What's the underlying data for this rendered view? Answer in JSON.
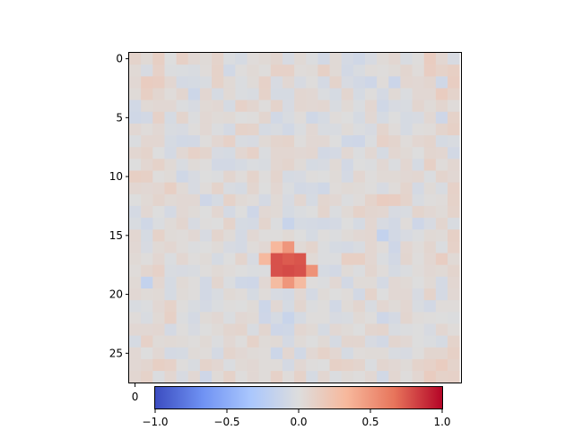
{
  "chart_data": {
    "type": "heatmap",
    "title": "",
    "xlabel": "",
    "ylabel": "",
    "rows": 28,
    "cols": 28,
    "colormap": "coolwarm",
    "vmin": -1.0,
    "vmax": 1.0,
    "colormap_stops": [
      "#3b4cc0",
      "#6f92f3",
      "#aac7fd",
      "#dddddd",
      "#f7b89c",
      "#e7745b",
      "#b40426"
    ],
    "y_ticks": [
      0,
      5,
      10,
      15,
      20,
      25
    ],
    "y_tick_labels": [
      "0",
      "5",
      "10",
      "15",
      "20",
      "25"
    ],
    "x_tick_labels": [
      "0"
    ],
    "colorbar": {
      "orientation": "horizontal",
      "ticks": [
        -1.0,
        -0.5,
        0.0,
        0.5,
        1.0
      ],
      "tick_labels": [
        "−1.0",
        "−0.5",
        "0.0",
        "0.5",
        "1.0"
      ]
    },
    "background_noise_range": [
      -0.2,
      0.2
    ],
    "values": [
      [
        0.09,
        0.04,
        0.13,
        0.0,
        0.12,
        0.05,
        0.03,
        0.09,
        -0.02,
        -0.05,
        0.02,
        0.04,
        0.07,
        -0.04,
        0.04,
        -0.01,
        -0.07,
        0.04,
        -0.06,
        -0.09,
        -0.04,
        0.03,
        0.06,
        -0.03,
        0.01,
        0.15,
        0.06,
        -0.04
      ],
      [
        0.04,
        -0.04,
        0.11,
        -0.01,
        -0.02,
        -0.03,
        0.02,
        0.1,
        -0.08,
        0.01,
        0.04,
        0.01,
        0.11,
        0.11,
        0.02,
        0.03,
        0.12,
        0.04,
        -0.07,
        -0.03,
        0.02,
        0.01,
        0.03,
        0.07,
        0.02,
        0.14,
        0.1,
        0.13
      ],
      [
        0.05,
        0.15,
        0.14,
        0.06,
        -0.06,
        -0.05,
        -0.03,
        0.1,
        0.04,
        -0.02,
        0.03,
        0.11,
        -0.04,
        0.05,
        -0.04,
        0.01,
        -0.06,
        0.09,
        -0.04,
        -0.07,
        -0.1,
        0.02,
        -0.12,
        0.06,
        0.05,
        0.07,
        -0.09,
        0.14
      ],
      [
        0.03,
        0.13,
        0.07,
        0.02,
        0.07,
        -0.11,
        0.06,
        -0.05,
        0.04,
        -0.02,
        -0.03,
        0.1,
        -0.05,
        -0.05,
        0.06,
        0.05,
        -0.02,
        -0.05,
        0.07,
        -0.05,
        0.01,
        -0.06,
        0.04,
        -0.02,
        0.05,
        0.05,
        0.15,
        0.09
      ],
      [
        -0.08,
        0.04,
        0.05,
        0.05,
        -0.01,
        -0.04,
        0.04,
        0.05,
        -0.05,
        0.11,
        0.07,
        0.01,
        0.09,
        -0.04,
        0.06,
        0.05,
        0.06,
        -0.03,
        0.04,
        -0.02,
        0.06,
        -0.09,
        -0.04,
        -0.03,
        0.07,
        0.03,
        0.07,
        0.02
      ],
      [
        -0.09,
        -0.07,
        0.11,
        -0.05,
        0.08,
        -0.01,
        0.05,
        0.03,
        0.04,
        0.0,
        0.01,
        0.07,
        -0.08,
        -0.03,
        0.02,
        -0.09,
        -0.05,
        0.02,
        0.0,
        -0.05,
        0.05,
        -0.05,
        0.0,
        -0.05,
        -0.04,
        0.05,
        -0.1,
        0.1
      ],
      [
        0.05,
        0.02,
        0.05,
        -0.03,
        -0.04,
        0.01,
        0.05,
        -0.01,
        -0.06,
        0.1,
        0.09,
        -0.05,
        -0.03,
        -0.08,
        -0.02,
        0.05,
        -0.03,
        -0.03,
        0.03,
        -0.02,
        -0.04,
        0.08,
        0.02,
        -0.05,
        0.01,
        0.02,
        0.08,
        0.12
      ],
      [
        -0.02,
        0.06,
        0.06,
        -0.05,
        -0.08,
        -0.07,
        0.01,
        0.06,
        0.11,
        -0.03,
        -0.04,
        0.04,
        0.08,
        0.09,
        0.01,
        0.05,
        0.05,
        0.0,
        -0.09,
        -0.1,
        -0.02,
        0.11,
        0.08,
        0.02,
        0.06,
        0.08,
        -0.05,
        -0.03
      ],
      [
        0.06,
        0.09,
        0.0,
        -0.06,
        0.05,
        0.11,
        0.08,
        -0.04,
        -0.05,
        0.06,
        0.11,
        -0.02,
        0.06,
        0.06,
        0.05,
        0.06,
        -0.07,
        -0.06,
        0.05,
        -0.01,
        0.05,
        -0.05,
        0.06,
        0.04,
        0.0,
        0.07,
        0.06,
        -0.07
      ],
      [
        0.0,
        0.06,
        0.1,
        0.04,
        -0.03,
        0.03,
        0.01,
        -0.07,
        -0.07,
        -0.05,
        -0.02,
        -0.03,
        0.06,
        0.08,
        0.03,
        -0.05,
        -0.04,
        0.04,
        -0.07,
        0.0,
        -0.01,
        0.05,
        -0.02,
        0.06,
        -0.05,
        0.12,
        0.02,
        0.06
      ],
      [
        0.13,
        0.12,
        0.01,
        0.03,
        -0.09,
        -0.04,
        0.0,
        -0.01,
        0.07,
        0.02,
        0.09,
        0.01,
        0.08,
        -0.05,
        -0.04,
        0.01,
        0.0,
        0.03,
        -0.06,
        0.06,
        0.01,
        0.04,
        0.04,
        0.05,
        0.06,
        -0.02,
        0.08,
        0.05
      ],
      [
        0.06,
        0.05,
        0.06,
        0.13,
        0.04,
        -0.04,
        0.02,
        0.09,
        -0.03,
        -0.05,
        0.07,
        0.0,
        0.06,
        -0.02,
        -0.07,
        -0.06,
        -0.09,
        0.02,
        0.04,
        0.03,
        0.01,
        -0.04,
        0.02,
        0.08,
        -0.06,
        0.03,
        -0.03,
        0.11
      ],
      [
        0.0,
        0.04,
        0.08,
        0.04,
        0.05,
        0.05,
        -0.1,
        -0.05,
        0.1,
        0.04,
        0.02,
        -0.06,
        0.04,
        -0.04,
        0.06,
        -0.05,
        0.07,
        0.05,
        -0.01,
        0.02,
        0.09,
        0.15,
        0.14,
        0.09,
        -0.03,
        0.01,
        0.02,
        0.1
      ],
      [
        -0.06,
        0.05,
        0.0,
        -0.06,
        0.05,
        0.03,
        0.0,
        0.06,
        -0.06,
        0.0,
        -0.1,
        0.05,
        0.04,
        -0.05,
        -0.02,
        0.0,
        0.08,
        -0.02,
        0.04,
        0.1,
        0.07,
        0.06,
        -0.04,
        -0.03,
        0.08,
        0.05,
        0.03,
        0.09
      ],
      [
        -0.03,
        -0.09,
        -0.02,
        0.03,
        0.07,
        -0.04,
        0.01,
        0.0,
        0.09,
        -0.05,
        -0.06,
        0.08,
        -0.01,
        -0.14,
        -0.05,
        -0.06,
        -0.07,
        -0.06,
        0.0,
        -0.05,
        0.06,
        -0.04,
        -0.07,
        0.02,
        -0.1,
        -0.04,
        0.07,
        -0.03
      ],
      [
        0.06,
        -0.05,
        0.1,
        0.03,
        0.02,
        0.05,
        -0.04,
        0.08,
        0.03,
        -0.06,
        0.05,
        0.01,
        0.01,
        0.04,
        0.0,
        -0.05,
        0.01,
        -0.01,
        0.03,
        0.05,
        0.06,
        -0.17,
        -0.07,
        -0.04,
        -0.01,
        0.04,
        0.03,
        0.12
      ],
      [
        0.05,
        -0.04,
        0.04,
        0.06,
        0.02,
        -0.01,
        0.0,
        0.03,
        -0.04,
        -0.06,
        0.02,
        0.05,
        0.33,
        0.5,
        0.04,
        0.08,
        -0.01,
        -0.05,
        -0.06,
        -0.03,
        0.06,
        0.02,
        -0.1,
        0.06,
        0.02,
        0.07,
        -0.02,
        0.11
      ],
      [
        0.04,
        0.01,
        0.06,
        -0.02,
        0.06,
        0.01,
        0.03,
        -0.05,
        0.0,
        0.08,
        -0.04,
        0.32,
        0.77,
        0.74,
        0.76,
        0.04,
        -0.01,
        -0.01,
        0.13,
        0.13,
        0.06,
        -0.02,
        -0.07,
        0.07,
        0.01,
        0.06,
        0.14,
        0.04
      ],
      [
        0.02,
        0.07,
        0.11,
        -0.03,
        -0.04,
        -0.03,
        0.01,
        0.04,
        0.02,
        0.0,
        -0.02,
        -0.01,
        0.77,
        0.79,
        0.77,
        0.52,
        -0.05,
        -0.07,
        0.03,
        -0.01,
        0.07,
        0.02,
        -0.05,
        -0.02,
        0.02,
        0.05,
        0.04,
        0.08
      ],
      [
        0.04,
        -0.17,
        0.06,
        -0.05,
        0.04,
        0.01,
        -0.07,
        0.07,
        -0.02,
        -0.09,
        -0.1,
        0.05,
        0.3,
        0.5,
        0.31,
        0.01,
        -0.01,
        0.05,
        -0.07,
        0.03,
        0.03,
        -0.06,
        0.05,
        0.04,
        0.0,
        0.04,
        -0.06,
        0.06
      ],
      [
        0.05,
        0.03,
        0.04,
        -0.05,
        0.03,
        0.01,
        -0.07,
        -0.03,
        0.04,
        0.02,
        -0.05,
        0.02,
        -0.04,
        -0.06,
        0.05,
        -0.06,
        0.03,
        0.0,
        0.02,
        -0.07,
        0.09,
        0.0,
        0.05,
        0.05,
        -0.04,
        0.09,
        -0.06,
        0.05
      ],
      [
        -0.03,
        -0.01,
        0.05,
        0.1,
        0.01,
        -0.03,
        -0.06,
        -0.02,
        0.01,
        0.0,
        0.03,
        -0.11,
        0.05,
        -0.05,
        0.07,
        -0.01,
        0.01,
        -0.08,
        0.03,
        0.07,
        -0.03,
        0.06,
        0.03,
        0.06,
        -0.03,
        -0.07,
        0.02,
        0.02
      ],
      [
        0.02,
        -0.03,
        0.04,
        0.12,
        -0.01,
        -0.06,
        0.03,
        0.05,
        -0.02,
        0.05,
        0.04,
        -0.1,
        -0.05,
        -0.14,
        -0.05,
        0.01,
        0.01,
        -0.04,
        -0.03,
        0.04,
        0.01,
        -0.1,
        -0.06,
        0.07,
        0.02,
        0.01,
        0.0,
        -0.01
      ],
      [
        0.05,
        0.05,
        0.06,
        -0.06,
        0.01,
        -0.04,
        0.0,
        0.03,
        0.07,
        0.08,
        -0.03,
        0.07,
        -0.1,
        -0.09,
        0.06,
        0.04,
        -0.05,
        0.05,
        0.03,
        0.0,
        0.07,
        0.08,
        -0.03,
        -0.01,
        0.0,
        -0.04,
        0.06,
        0.02
      ],
      [
        -0.05,
        0.11,
        0.03,
        0.04,
        0.03,
        0.01,
        0.04,
        -0.01,
        0.05,
        0.01,
        0.1,
        0.03,
        0.04,
        -0.06,
        0.03,
        0.0,
        0.04,
        -0.05,
        0.07,
        0.07,
        -0.04,
        -0.07,
        0.07,
        0.05,
        0.0,
        -0.02,
        -0.05,
        0.09
      ],
      [
        0.05,
        0.0,
        0.05,
        -0.06,
        -0.05,
        0.03,
        0.02,
        -0.06,
        0.08,
        0.05,
        0.03,
        0.02,
        -0.11,
        0.06,
        -0.08,
        0.05,
        0.1,
        0.06,
        -0.05,
        0.02,
        0.03,
        0.03,
        -0.03,
        -0.04,
        0.01,
        0.07,
        0.07,
        0.12
      ],
      [
        0.05,
        0.07,
        0.13,
        0.11,
        0.01,
        -0.03,
        0.09,
        0.06,
        -0.02,
        0.04,
        0.05,
        0.02,
        0.02,
        -0.06,
        0.05,
        0.01,
        0.0,
        0.12,
        0.1,
        0.08,
        -0.02,
        0.07,
        0.05,
        0.03,
        0.09,
        0.11,
        0.15,
        0.09
      ],
      [
        0.06,
        0.1,
        -0.02,
        0.06,
        -0.04,
        0.05,
        -0.1,
        0.03,
        0.1,
        0.01,
        0.05,
        0.02,
        0.11,
        0.02,
        0.1,
        -0.05,
        0.06,
        -0.02,
        0.03,
        0.01,
        0.05,
        -0.08,
        0.06,
        0.01,
        0.06,
        0.15,
        0.1,
        0.11
      ]
    ]
  }
}
